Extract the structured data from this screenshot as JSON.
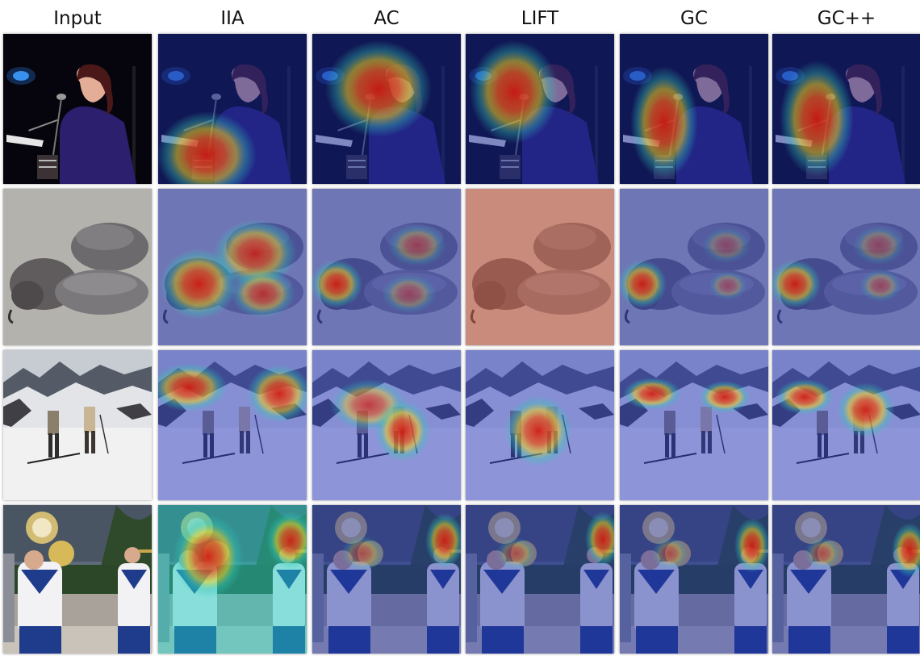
{
  "figure": {
    "columns": [
      {
        "key": "input",
        "label": "Input"
      },
      {
        "key": "iia",
        "label": "IIA"
      },
      {
        "key": "ac",
        "label": "AC"
      },
      {
        "key": "lift",
        "label": "LIFT"
      },
      {
        "key": "gc",
        "label": "GC"
      },
      {
        "key": "gcpp",
        "label": "GC++"
      }
    ],
    "rows": [
      {
        "key": "singer",
        "scene": "singer-on-stage"
      },
      {
        "key": "warthogs",
        "scene": "warthogs-lying-on-ground"
      },
      {
        "key": "skiers",
        "scene": "two-skiers-on-snowy-mountain"
      },
      {
        "key": "band",
        "scene": "marching-band-brass-players"
      }
    ],
    "colors": {
      "heat_hot": "#d41a10",
      "heat_warm": "#f2d21e",
      "heat_mid": "#31c9b5",
      "heat_cold": "#14278f"
    }
  }
}
